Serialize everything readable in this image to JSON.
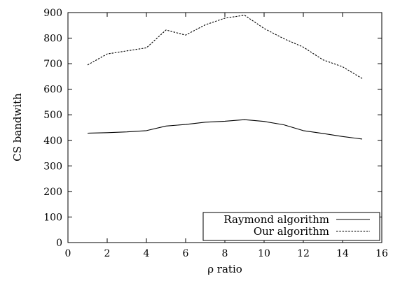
{
  "chart_data": {
    "type": "line",
    "xlabel": "ρ ratio",
    "ylabel": "CS bandwith",
    "xlim": [
      0,
      16
    ],
    "ylim": [
      0,
      900
    ],
    "x_ticks": [
      0,
      2,
      4,
      6,
      8,
      10,
      12,
      14,
      16
    ],
    "y_ticks": [
      0,
      100,
      200,
      300,
      400,
      500,
      600,
      700,
      800,
      900
    ],
    "grid": false,
    "legend_position": "bottom-right",
    "x": [
      1,
      2,
      3,
      4,
      5,
      6,
      7,
      8,
      9,
      10,
      11,
      12,
      13,
      14,
      15
    ],
    "series": [
      {
        "name": "Raymond algorithm",
        "line_style": "solid",
        "color": "#000000",
        "values": [
          428,
          430,
          433,
          438,
          456,
          462,
          471,
          475,
          481,
          474,
          461,
          438,
          427,
          415,
          405
        ]
      },
      {
        "name": "Our algorithm",
        "line_style": "dashed",
        "color": "#000000",
        "values": [
          695,
          738,
          750,
          762,
          832,
          812,
          852,
          878,
          890,
          838,
          798,
          765,
          715,
          688,
          642
        ]
      }
    ]
  }
}
